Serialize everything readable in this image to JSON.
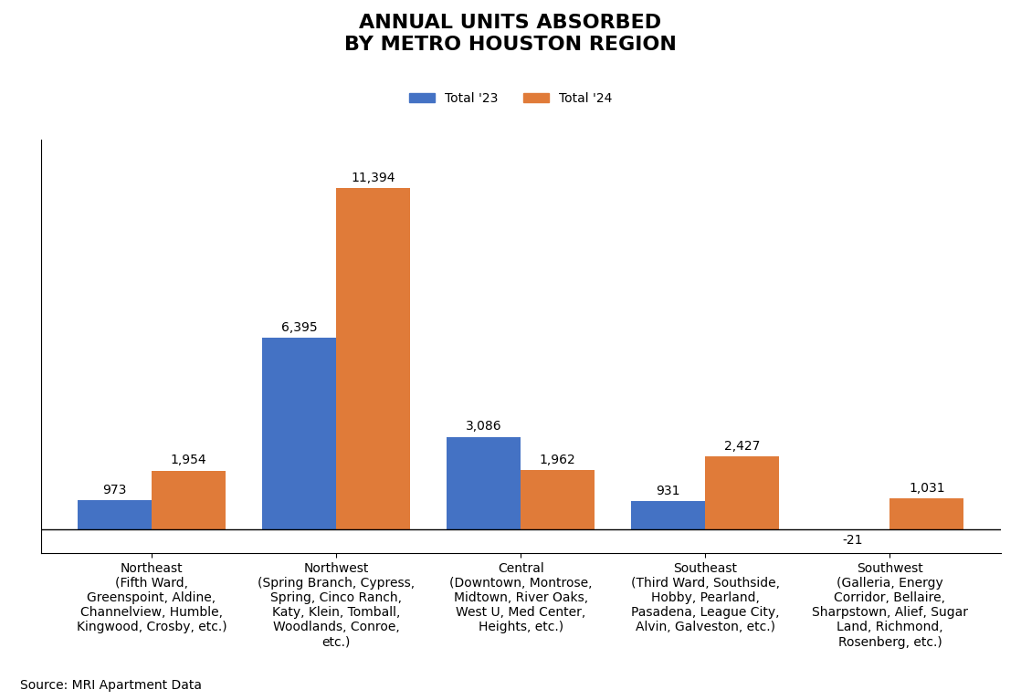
{
  "chart_data": {
    "type": "bar",
    "title": "ANNUAL UNITS ABSORBED\nBY METRO HOUSTON REGION",
    "categories": [
      "Northeast\n(Fifth Ward,\nGreenspoint, Aldine,\nChannelview, Humble,\nKingwood, Crosby, etc.)",
      "Northwest\n(Spring Branch, Cypress,\nSpring, Cinco Ranch,\nKaty, Klein, Tomball,\nWoodlands, Conroe,\netc.)",
      "Central\n(Downtown, Montrose,\nMidtown, River Oaks,\nWest U, Med Center,\nHeights, etc.)",
      "Southeast\n(Third Ward, Southside,\nHobby, Pearland,\nPasadena, League City,\nAlvin, Galveston, etc.)",
      "Southwest\n(Galleria, Energy\nCorridor, Bellaire,\nSharpstown, Alief, Sugar\nLand, Richmond,\nRosenberg, etc.)"
    ],
    "series": [
      {
        "name": "Total '23",
        "color": "#4472C4",
        "values": [
          973,
          6395,
          3086,
          931,
          -21
        ],
        "value_labels": [
          "973",
          "6,395",
          "3,086",
          "931",
          "-21"
        ]
      },
      {
        "name": "Total '24",
        "color": "#E07B39",
        "values": [
          1954,
          11394,
          1962,
          2427,
          1031
        ],
        "value_labels": [
          "1,954",
          "11,394",
          "1,962",
          "2,427",
          "1,031"
        ]
      }
    ],
    "ylim": [
      -800,
      13000
    ],
    "data_labels": true,
    "tick_labels": "x",
    "legend": "upper center",
    "annotations": [
      "Source: MRI Apartment Data"
    ]
  }
}
